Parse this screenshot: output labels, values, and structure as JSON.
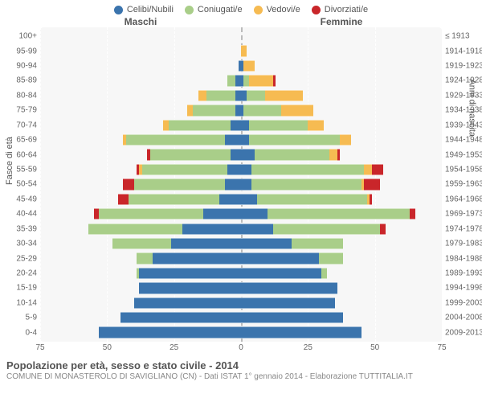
{
  "legend": [
    {
      "label": "Celibi/Nubili",
      "color": "#3b74ad"
    },
    {
      "label": "Coniugati/e",
      "color": "#a9ce89"
    },
    {
      "label": "Vedovi/e",
      "color": "#f6bb52"
    },
    {
      "label": "Divorziati/e",
      "color": "#c9262a"
    }
  ],
  "genders": {
    "male": "Maschi",
    "female": "Femmine"
  },
  "axis": {
    "left_title": "Fasce di età",
    "right_title": "Anni di nascita",
    "xmax": 75,
    "xticks": [
      75,
      50,
      25,
      0,
      25,
      50,
      75
    ]
  },
  "background_color": "#f7f7f7",
  "grid_color": "rgba(255,255,255,0.9)",
  "title": "Popolazione per età, sesso e stato civile - 2014",
  "subtitle": "COMUNE DI MONASTEROLO DI SAVIGLIANO (CN) - Dati ISTAT 1° gennaio 2014 - Elaborazione TUTTITALIA.IT",
  "age_bands": [
    {
      "age": "100+",
      "birth": "≤ 1913",
      "m": [
        0,
        0,
        0,
        0
      ],
      "f": [
        0,
        0,
        0,
        0
      ]
    },
    {
      "age": "95-99",
      "birth": "1914-1918",
      "m": [
        0,
        0,
        0,
        0
      ],
      "f": [
        0,
        0,
        2,
        0
      ]
    },
    {
      "age": "90-94",
      "birth": "1919-1923",
      "m": [
        1,
        0,
        0,
        0
      ],
      "f": [
        1,
        0,
        4,
        0
      ]
    },
    {
      "age": "85-89",
      "birth": "1924-1928",
      "m": [
        2,
        3,
        0,
        0
      ],
      "f": [
        1,
        2,
        9,
        1
      ]
    },
    {
      "age": "80-84",
      "birth": "1929-1933",
      "m": [
        2,
        11,
        3,
        0
      ],
      "f": [
        2,
        7,
        14,
        0
      ]
    },
    {
      "age": "75-79",
      "birth": "1934-1938",
      "m": [
        2,
        16,
        2,
        0
      ],
      "f": [
        1,
        14,
        12,
        0
      ]
    },
    {
      "age": "70-74",
      "birth": "1939-1943",
      "m": [
        4,
        23,
        2,
        0
      ],
      "f": [
        3,
        22,
        6,
        0
      ]
    },
    {
      "age": "65-69",
      "birth": "1944-1948",
      "m": [
        6,
        37,
        1,
        0
      ],
      "f": [
        3,
        34,
        4,
        0
      ]
    },
    {
      "age": "60-64",
      "birth": "1949-1953",
      "m": [
        4,
        30,
        0,
        1
      ],
      "f": [
        5,
        28,
        3,
        1
      ]
    },
    {
      "age": "55-59",
      "birth": "1954-1958",
      "m": [
        5,
        32,
        1,
        1
      ],
      "f": [
        4,
        42,
        3,
        4
      ]
    },
    {
      "age": "50-54",
      "birth": "1959-1963",
      "m": [
        6,
        34,
        0,
        4
      ],
      "f": [
        4,
        41,
        1,
        6
      ]
    },
    {
      "age": "45-49",
      "birth": "1964-1968",
      "m": [
        8,
        34,
        0,
        4
      ],
      "f": [
        6,
        41,
        1,
        1
      ]
    },
    {
      "age": "40-44",
      "birth": "1969-1973",
      "m": [
        14,
        39,
        0,
        2
      ],
      "f": [
        10,
        53,
        0,
        2
      ]
    },
    {
      "age": "35-39",
      "birth": "1974-1978",
      "m": [
        22,
        35,
        0,
        0
      ],
      "f": [
        12,
        40,
        0,
        2
      ]
    },
    {
      "age": "30-34",
      "birth": "1979-1983",
      "m": [
        26,
        22,
        0,
        0
      ],
      "f": [
        19,
        19,
        0,
        0
      ]
    },
    {
      "age": "25-29",
      "birth": "1984-1988",
      "m": [
        33,
        6,
        0,
        0
      ],
      "f": [
        29,
        9,
        0,
        0
      ]
    },
    {
      "age": "20-24",
      "birth": "1989-1993",
      "m": [
        38,
        1,
        0,
        0
      ],
      "f": [
        30,
        2,
        0,
        0
      ]
    },
    {
      "age": "15-19",
      "birth": "1994-1998",
      "m": [
        38,
        0,
        0,
        0
      ],
      "f": [
        36,
        0,
        0,
        0
      ]
    },
    {
      "age": "10-14",
      "birth": "1999-2003",
      "m": [
        40,
        0,
        0,
        0
      ],
      "f": [
        35,
        0,
        0,
        0
      ]
    },
    {
      "age": "5-9",
      "birth": "2004-2008",
      "m": [
        45,
        0,
        0,
        0
      ],
      "f": [
        38,
        0,
        0,
        0
      ]
    },
    {
      "age": "0-4",
      "birth": "2009-2013",
      "m": [
        53,
        0,
        0,
        0
      ],
      "f": [
        45,
        0,
        0,
        0
      ]
    }
  ]
}
